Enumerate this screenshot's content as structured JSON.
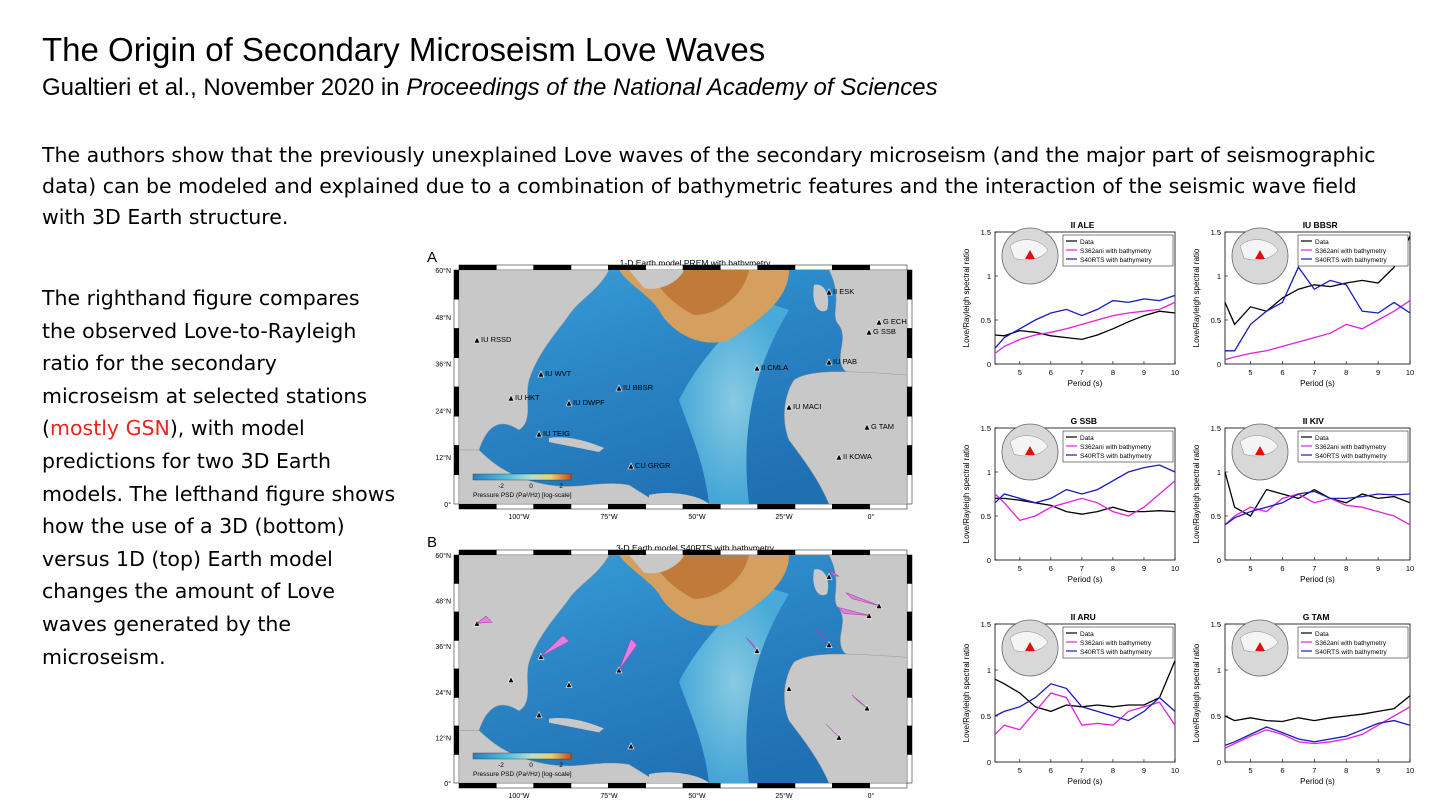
{
  "title": "The Origin of Secondary Microseism Love Waves",
  "citation": {
    "authors_date": "Gualtieri et al., November 2020 in ",
    "journal": "Proceedings of the National Academy of Sciences"
  },
  "summary": "The authors show that the previously unexplained Love waves of the secondary microseism (and the major part of seismographic data) can be modeled and explained due to a combination of bathymetric features and the interaction of the seismic wave field with 3D Earth structure.",
  "side_text": {
    "part1": "The righthand figure compares the observed Love-to-Rayleigh ratio for the secondary microseism at selected stations (",
    "highlight": "mostly GSN",
    "part2": "), with model predictions for two 3D Earth models. The lefthand figure shows how the use of a 3D (bottom) versus 1D (top) Earth model changes the amount of Love waves generated by the microseism."
  },
  "colors": {
    "highlight": "#e8261d",
    "data": "#000000",
    "s362ani": "#e020e0",
    "s40rts": "#1a1ab8",
    "land": "#c8c8c8",
    "deep_ocean": "#2a7fc0",
    "shallow": "#c99a55"
  },
  "maps": {
    "lat_ticks": [
      "60°N",
      "48°N",
      "36°N",
      "24°N",
      "12°N",
      "0°"
    ],
    "lon_ticks": [
      "100°W",
      "75°W",
      "50°W",
      "25°W",
      "0°"
    ],
    "colorbar_ticks": [
      "-2",
      "0",
      "2"
    ],
    "colorbar_label": "Pressure PSD (Pa²/Hz) [log-scale]",
    "panel_a": {
      "letter": "A",
      "title": "1-D Earth model PREM with bathymetry",
      "stations": [
        "II ESK",
        "G ECH",
        "G SSB",
        "IU RSSD",
        "IU PAB",
        "IU WVT",
        "II CMLA",
        "IU BBSR",
        "IU HKT",
        "IU DWPF",
        "IU MACI",
        "G TAM",
        "IU TEIG",
        "CU GRGR",
        "II KOWA"
      ]
    },
    "panel_b": {
      "letter": "B",
      "title": "3-D Earth model S40RTS with bathymetry"
    }
  },
  "station_panels": [
    {
      "title": "II ALE",
      "chart_data": {
        "type": "line",
        "xlabel": "Period (s)",
        "ylabel": "Love/Rayleigh spectral ratio",
        "x": [
          4.2,
          4.5,
          5,
          5.5,
          6,
          6.5,
          7,
          7.5,
          8,
          8.5,
          9,
          9.5,
          10
        ],
        "xlim": [
          4.2,
          10
        ],
        "ylim": [
          0,
          1.5
        ],
        "xticks": [
          "5",
          "6",
          "7",
          "8",
          "9",
          "10"
        ],
        "yticks": [
          "0",
          "0.5",
          "1",
          "1.5"
        ],
        "legend": "top-right",
        "series": [
          {
            "name": "Data",
            "values": [
              0.33,
              0.32,
              0.38,
              0.36,
              0.32,
              0.3,
              0.28,
              0.33,
              0.4,
              0.48,
              0.55,
              0.6,
              0.58
            ]
          },
          {
            "name": "S362ani with bathymetry",
            "values": [
              0.12,
              0.2,
              0.28,
              0.33,
              0.36,
              0.4,
              0.45,
              0.5,
              0.55,
              0.58,
              0.6,
              0.62,
              0.7
            ]
          },
          {
            "name": "S40RTS with bathymetry",
            "values": [
              0.18,
              0.3,
              0.4,
              0.5,
              0.58,
              0.62,
              0.55,
              0.62,
              0.72,
              0.7,
              0.74,
              0.72,
              0.78
            ]
          }
        ]
      }
    },
    {
      "title": "IU BBSR",
      "chart_data": {
        "type": "line",
        "xlabel": "Period (s)",
        "ylabel": "Love/Rayleigh spectral ratio",
        "x": [
          4.2,
          4.5,
          5,
          5.5,
          6,
          6.5,
          7,
          7.5,
          8,
          8.5,
          9,
          9.5,
          10
        ],
        "xlim": [
          4.2,
          10
        ],
        "ylim": [
          0,
          1.5
        ],
        "xticks": [
          "5",
          "6",
          "7",
          "8",
          "9",
          "10"
        ],
        "yticks": [
          "0",
          "0.5",
          "1",
          "1.5"
        ],
        "legend": "top-right",
        "series": [
          {
            "name": "Data",
            "values": [
              0.7,
              0.45,
              0.65,
              0.6,
              0.75,
              0.85,
              0.9,
              0.88,
              0.92,
              0.95,
              0.92,
              1.1,
              1.45
            ]
          },
          {
            "name": "S362ani with bathymetry",
            "values": [
              0.05,
              0.08,
              0.12,
              0.15,
              0.2,
              0.25,
              0.3,
              0.35,
              0.45,
              0.4,
              0.5,
              0.6,
              0.72
            ]
          },
          {
            "name": "S40RTS with bathymetry",
            "values": [
              0.15,
              0.15,
              0.45,
              0.6,
              0.7,
              1.1,
              0.85,
              0.95,
              0.9,
              0.6,
              0.58,
              0.7,
              0.58
            ]
          }
        ]
      }
    },
    {
      "title": "G SSB",
      "chart_data": {
        "type": "line",
        "xlabel": "Period (s)",
        "ylabel": "Love/Rayleigh spectral ratio",
        "x": [
          4.2,
          4.5,
          5,
          5.5,
          6,
          6.5,
          7,
          7.5,
          8,
          8.5,
          9,
          9.5,
          10
        ],
        "xlim": [
          4.2,
          10
        ],
        "ylim": [
          0,
          1.5
        ],
        "xticks": [
          "5",
          "6",
          "7",
          "8",
          "9",
          "10"
        ],
        "yticks": [
          "0",
          "0.5",
          "1",
          "1.5"
        ],
        "legend": "top-right",
        "series": [
          {
            "name": "Data",
            "values": [
              0.7,
              0.7,
              0.68,
              0.65,
              0.62,
              0.55,
              0.52,
              0.55,
              0.6,
              0.55,
              0.55,
              0.56,
              0.55
            ]
          },
          {
            "name": "S362ani with bathymetry",
            "values": [
              0.75,
              0.65,
              0.45,
              0.5,
              0.6,
              0.65,
              0.7,
              0.65,
              0.55,
              0.5,
              0.6,
              0.75,
              0.9
            ]
          },
          {
            "name": "S40RTS with bathymetry",
            "values": [
              0.65,
              0.75,
              0.7,
              0.65,
              0.7,
              0.8,
              0.75,
              0.8,
              0.9,
              1.0,
              1.05,
              1.08,
              1.0
            ]
          }
        ]
      }
    },
    {
      "title": "II KIV",
      "chart_data": {
        "type": "line",
        "xlabel": "Period (s)",
        "ylabel": "Love/Rayleigh spectral ratio",
        "x": [
          4.2,
          4.5,
          5,
          5.5,
          6,
          6.5,
          7,
          7.5,
          8,
          8.5,
          9,
          9.5,
          10
        ],
        "xlim": [
          4.2,
          10
        ],
        "ylim": [
          0,
          1.5
        ],
        "xticks": [
          "5",
          "6",
          "7",
          "8",
          "9",
          "10"
        ],
        "yticks": [
          "0",
          "0.5",
          "1",
          "1.5"
        ],
        "legend": "top-right",
        "series": [
          {
            "name": "Data",
            "values": [
              1.0,
              0.6,
              0.5,
              0.8,
              0.75,
              0.7,
              0.8,
              0.7,
              0.65,
              0.75,
              0.7,
              0.72,
              0.65
            ]
          },
          {
            "name": "S362ani with bathymetry",
            "values": [
              0.4,
              0.5,
              0.6,
              0.55,
              0.7,
              0.75,
              0.65,
              0.7,
              0.62,
              0.6,
              0.55,
              0.5,
              0.4
            ]
          },
          {
            "name": "S40RTS with bathymetry",
            "values": [
              0.4,
              0.48,
              0.55,
              0.6,
              0.65,
              0.75,
              0.78,
              0.7,
              0.7,
              0.72,
              0.75,
              0.74,
              0.75
            ]
          }
        ]
      }
    },
    {
      "title": "II ARU",
      "chart_data": {
        "type": "line",
        "xlabel": "Period (s)",
        "ylabel": "Love/Rayleigh spectral ratio",
        "x": [
          4.2,
          4.5,
          5,
          5.5,
          6,
          6.5,
          7,
          7.5,
          8,
          8.5,
          9,
          9.5,
          10
        ],
        "xlim": [
          4.2,
          10
        ],
        "ylim": [
          0,
          1.5
        ],
        "xticks": [
          "5",
          "6",
          "7",
          "8",
          "9",
          "10"
        ],
        "yticks": [
          "0",
          "0.5",
          "1",
          "1.5"
        ],
        "legend": "top-right",
        "series": [
          {
            "name": "Data",
            "values": [
              0.9,
              0.85,
              0.75,
              0.6,
              0.55,
              0.62,
              0.6,
              0.62,
              0.6,
              0.62,
              0.62,
              0.7,
              1.1
            ]
          },
          {
            "name": "S362ani with bathymetry",
            "values": [
              0.3,
              0.4,
              0.35,
              0.55,
              0.75,
              0.7,
              0.4,
              0.42,
              0.4,
              0.55,
              0.6,
              0.65,
              0.4
            ]
          },
          {
            "name": "S40RTS with bathymetry",
            "values": [
              0.5,
              0.55,
              0.6,
              0.7,
              0.85,
              0.8,
              0.6,
              0.55,
              0.5,
              0.45,
              0.55,
              0.7,
              0.55
            ]
          }
        ]
      }
    },
    {
      "title": "G TAM",
      "chart_data": {
        "type": "line",
        "xlabel": "Period (s)",
        "ylabel": "Love/Rayleigh spectral ratio",
        "x": [
          4.2,
          4.5,
          5,
          5.5,
          6,
          6.5,
          7,
          7.5,
          8,
          8.5,
          9,
          9.5,
          10
        ],
        "xlim": [
          4.2,
          10
        ],
        "ylim": [
          0,
          1.5
        ],
        "xticks": [
          "5",
          "6",
          "7",
          "8",
          "9",
          "10"
        ],
        "yticks": [
          "0",
          "0.5",
          "1",
          "1.5"
        ],
        "legend": "top-right",
        "series": [
          {
            "name": "Data",
            "values": [
              0.5,
              0.45,
              0.48,
              0.45,
              0.44,
              0.48,
              0.45,
              0.48,
              0.5,
              0.52,
              0.55,
              0.58,
              0.72
            ]
          },
          {
            "name": "S362ani with bathymetry",
            "values": [
              0.15,
              0.2,
              0.28,
              0.35,
              0.3,
              0.22,
              0.2,
              0.22,
              0.25,
              0.3,
              0.4,
              0.5,
              0.6
            ]
          },
          {
            "name": "S40RTS with bathymetry",
            "values": [
              0.18,
              0.22,
              0.3,
              0.38,
              0.32,
              0.25,
              0.22,
              0.25,
              0.28,
              0.35,
              0.42,
              0.45,
              0.4
            ]
          }
        ]
      }
    }
  ]
}
